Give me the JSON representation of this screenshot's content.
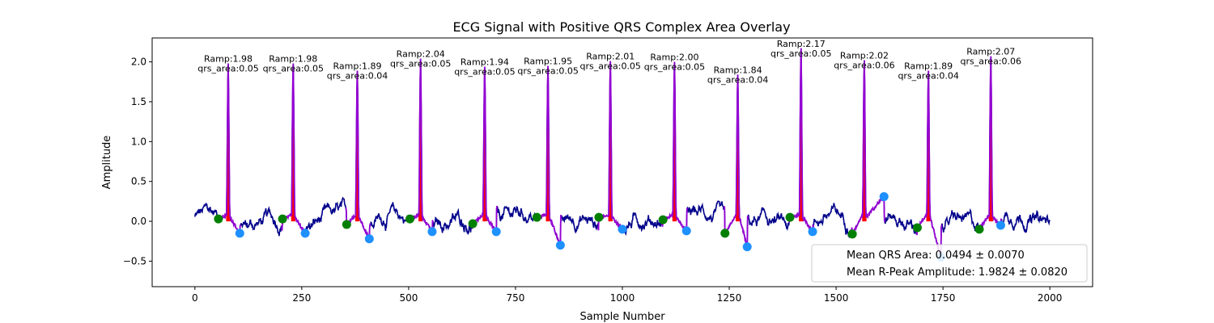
{
  "colors": {
    "signal": "#00008b",
    "qrs_segment": "#9400d3",
    "qrs_area_fill": "#ff0000",
    "q_marker": "#008000",
    "s_marker": "#1e90ff"
  },
  "chart_data": {
    "type": "line",
    "title": "ECG Signal with Positive QRS Complex Area Overlay",
    "xlabel": "Sample Number",
    "ylabel": "Amplitude",
    "xlim": [
      -100,
      2100
    ],
    "ylim": [
      -0.82,
      2.3
    ],
    "xticks": [
      0,
      250,
      500,
      750,
      1000,
      1250,
      1500,
      1750,
      2000
    ],
    "yticks": [
      -0.5,
      0.0,
      0.5,
      1.0,
      1.5,
      2.0
    ],
    "ytick_labels": [
      "−0.5",
      "0.0",
      "0.5",
      "1.0",
      "1.5",
      "2.0"
    ],
    "grid": false,
    "r_peaks": [
      {
        "x": 78,
        "amp": 1.98,
        "label_amp": "Ramp:1.98",
        "label_area": "qrs_area:0.05",
        "q": {
          "x": 55,
          "y": 0.03
        },
        "s": {
          "x": 105,
          "y": -0.15
        }
      },
      {
        "x": 230,
        "amp": 1.98,
        "label_amp": "Ramp:1.98",
        "label_area": "qrs_area:0.05",
        "q": {
          "x": 205,
          "y": 0.03
        },
        "s": {
          "x": 258,
          "y": -0.15
        }
      },
      {
        "x": 380,
        "amp": 1.89,
        "label_amp": "Ramp:1.89",
        "label_area": "qrs_area:0.04",
        "q": {
          "x": 355,
          "y": -0.04
        },
        "s": {
          "x": 408,
          "y": -0.22
        }
      },
      {
        "x": 528,
        "amp": 2.04,
        "label_amp": "Ramp:2.04",
        "label_area": "qrs_area:0.05",
        "q": {
          "x": 503,
          "y": 0.03
        },
        "s": {
          "x": 555,
          "y": -0.13
        }
      },
      {
        "x": 678,
        "amp": 1.94,
        "label_amp": "Ramp:1.94",
        "label_area": "qrs_area:0.05",
        "q": {
          "x": 650,
          "y": -0.03
        },
        "s": {
          "x": 705,
          "y": -0.13
        }
      },
      {
        "x": 826,
        "amp": 1.95,
        "label_amp": "Ramp:1.95",
        "label_area": "qrs_area:0.05",
        "q": {
          "x": 800,
          "y": 0.05
        },
        "s": {
          "x": 855,
          "y": -0.3
        }
      },
      {
        "x": 972,
        "amp": 2.01,
        "label_amp": "Ramp:2.01",
        "label_area": "qrs_area:0.05",
        "q": {
          "x": 945,
          "y": 0.05
        },
        "s": {
          "x": 1000,
          "y": -0.1
        }
      },
      {
        "x": 1122,
        "amp": 2.0,
        "label_amp": "Ramp:2.00",
        "label_area": "qrs_area:0.05",
        "q": {
          "x": 1095,
          "y": 0.02
        },
        "s": {
          "x": 1150,
          "y": -0.12
        }
      },
      {
        "x": 1270,
        "amp": 1.84,
        "label_amp": "Ramp:1.84",
        "label_area": "qrs_area:0.04",
        "q": {
          "x": 1240,
          "y": -0.15
        },
        "s": {
          "x": 1292,
          "y": -0.32
        }
      },
      {
        "x": 1418,
        "amp": 2.17,
        "label_amp": "Ramp:2.17",
        "label_area": "qrs_area:0.05",
        "q": {
          "x": 1392,
          "y": 0.05
        },
        "s": {
          "x": 1445,
          "y": -0.13
        }
      },
      {
        "x": 1566,
        "amp": 2.02,
        "label_amp": "Ramp:2.02",
        "label_area": "qrs_area:0.06",
        "q": {
          "x": 1538,
          "y": -0.16
        },
        "s": {
          "x": 1612,
          "y": 0.31
        }
      },
      {
        "x": 1716,
        "amp": 1.89,
        "label_amp": "Ramp:1.89",
        "label_area": "qrs_area:0.04",
        "q": {
          "x": 1690,
          "y": -0.08
        },
        "s": {
          "x": 1745,
          "y": -0.45
        }
      },
      {
        "x": 1862,
        "amp": 2.07,
        "label_amp": "Ramp:2.07",
        "label_area": "qrs_area:0.06",
        "q": {
          "x": 1835,
          "y": -0.1
        },
        "s": {
          "x": 1885,
          "y": -0.05
        }
      }
    ],
    "legend": {
      "placement": "lower-right",
      "entries": [
        "Mean QRS Area: 0.0494 ± 0.0070",
        "Mean R-Peak Amplitude: 1.9824 ± 0.0820"
      ]
    }
  }
}
